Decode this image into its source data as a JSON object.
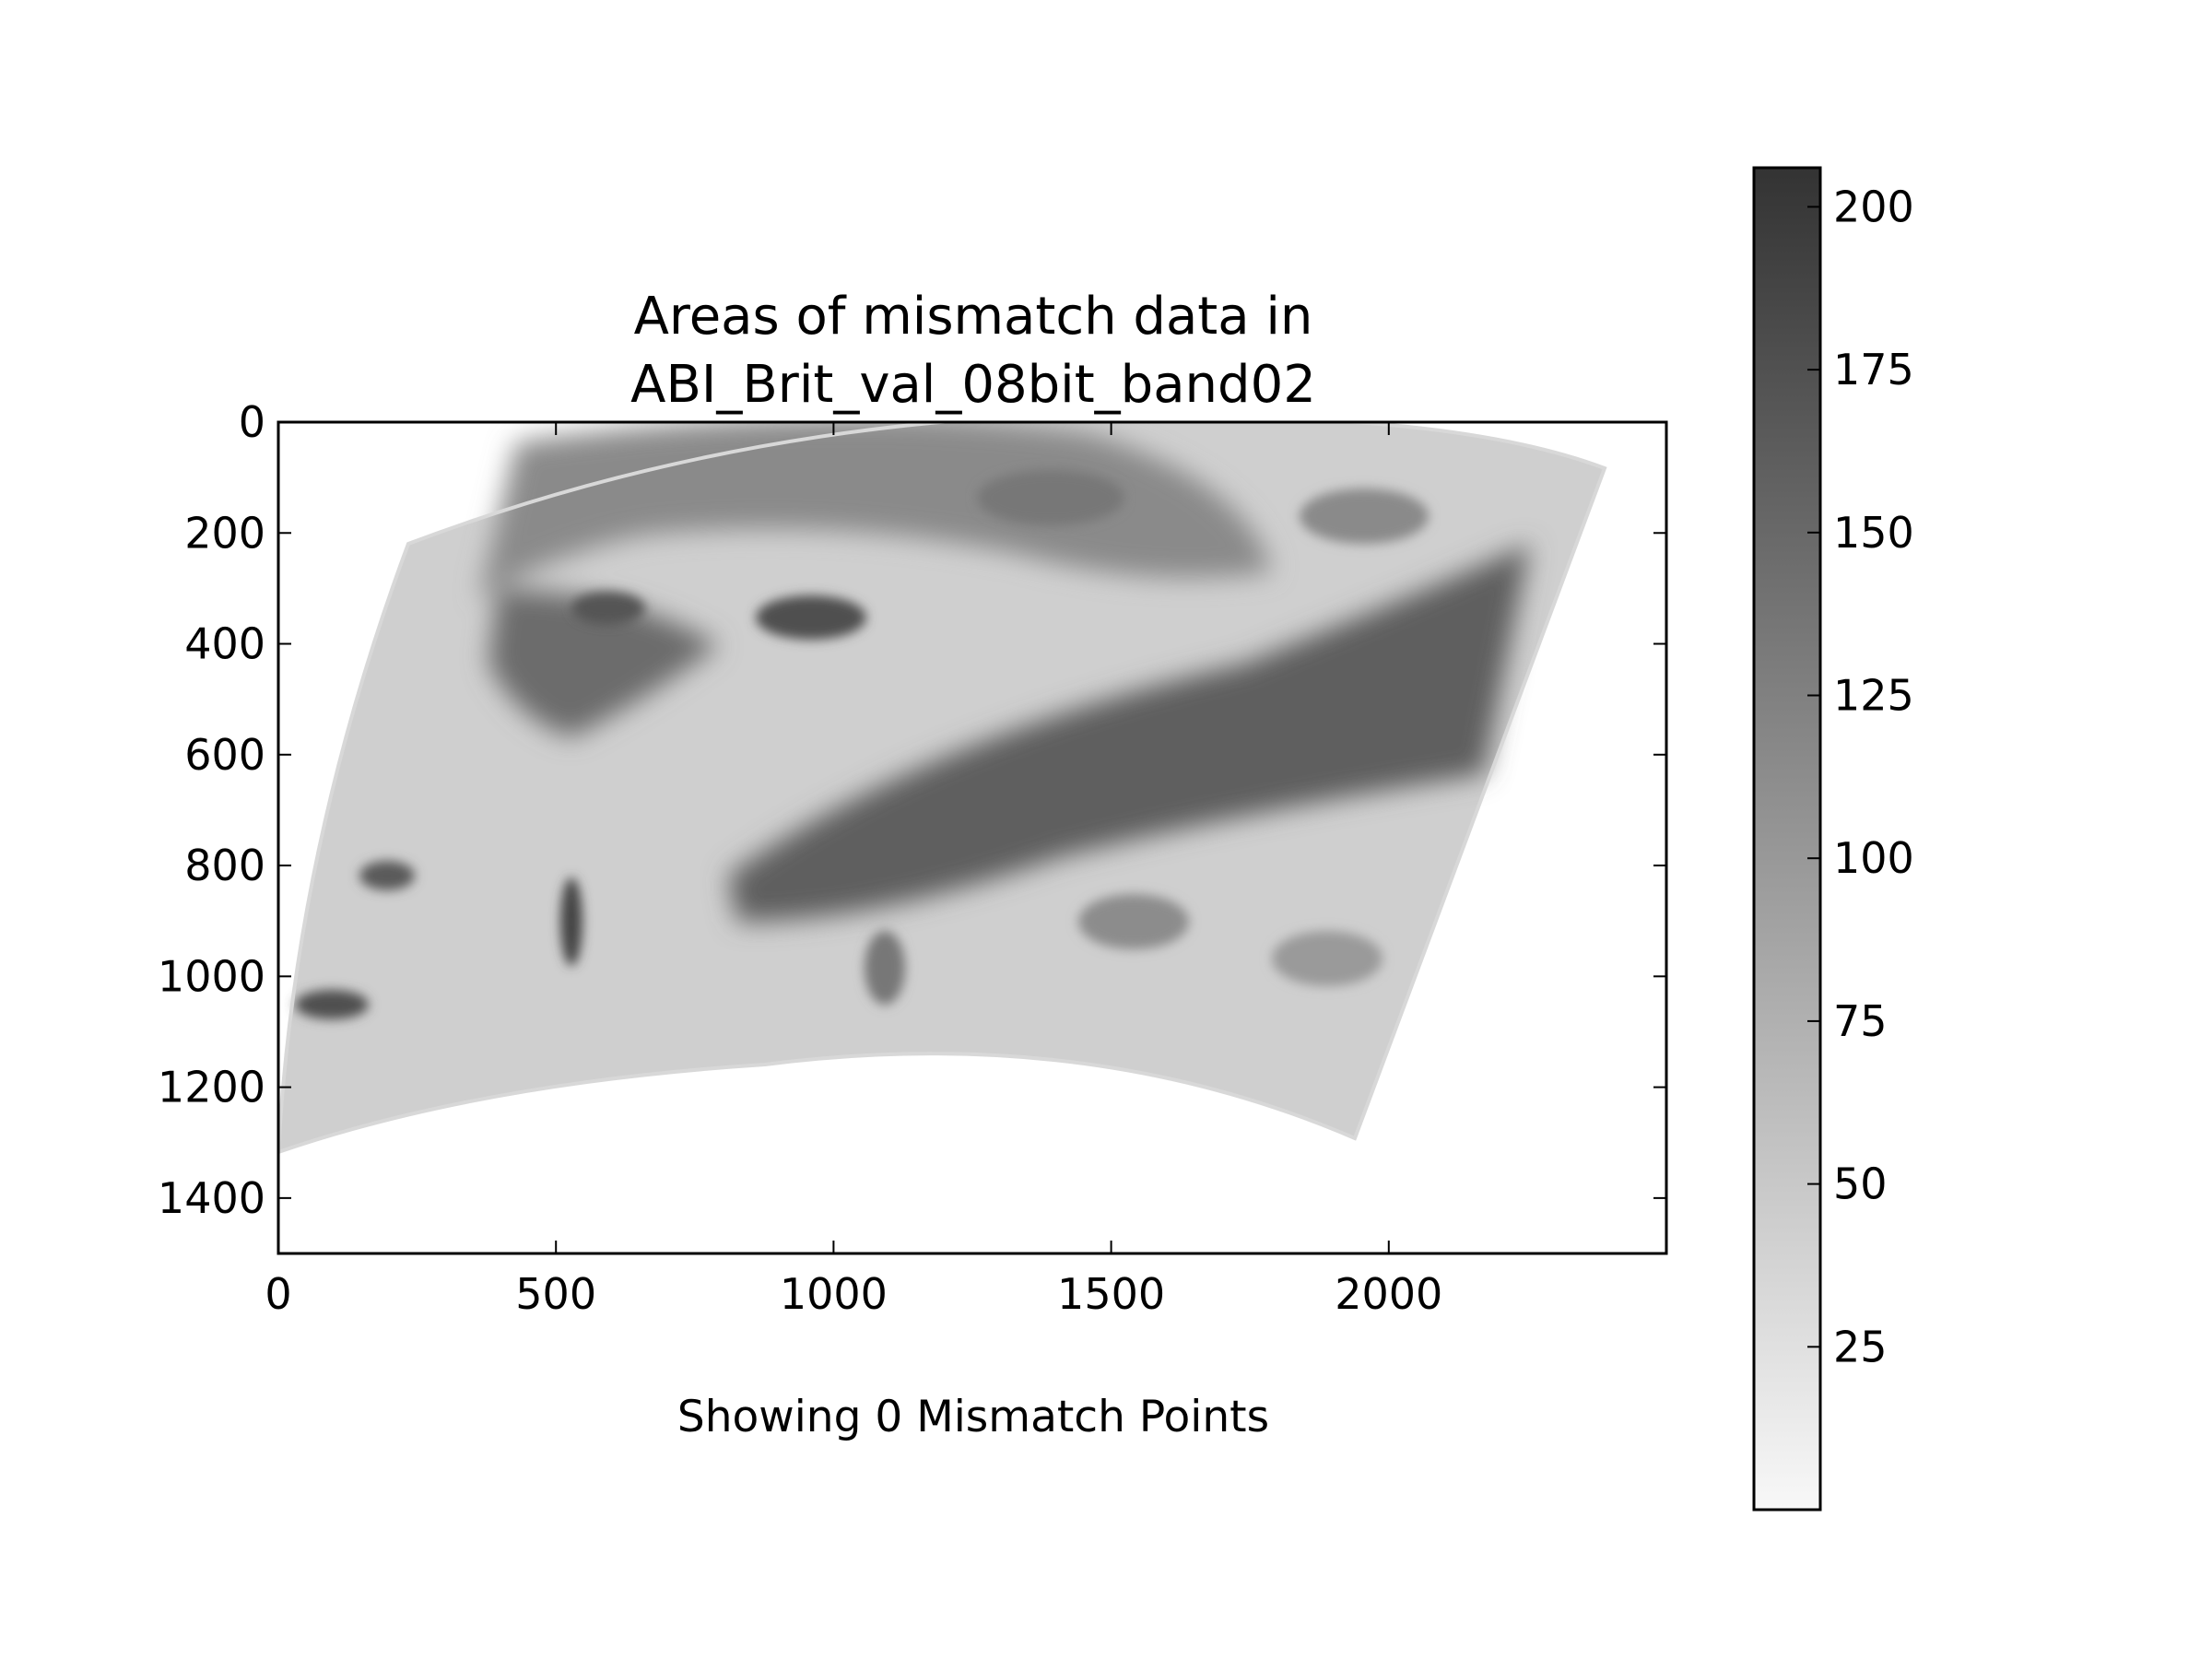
{
  "chart_data": {
    "type": "heatmap",
    "title_lines": [
      "Areas of mismatch data in",
      "ABI_Brit_val_08bit_band02"
    ],
    "xlabel": "",
    "ylabel": "",
    "caption": "Showing 0 Mismatch Points",
    "xlim": [
      0,
      2500
    ],
    "ylim": [
      1500,
      0
    ],
    "y_axis_inverted": true,
    "x_ticks": [
      0,
      500,
      1000,
      1500,
      2000
    ],
    "x_tick_labels": [
      "0",
      "500",
      "1000",
      "1500",
      "2000"
    ],
    "y_ticks": [
      0,
      200,
      400,
      600,
      800,
      1000,
      1200,
      1400
    ],
    "y_tick_labels": [
      "0",
      "200",
      "400",
      "600",
      "800",
      "1000",
      "1200",
      "1400"
    ],
    "colormap": "grayscale (white = low, dark gray = high)",
    "colorbar": {
      "range": [
        0,
        206
      ],
      "ticks": [
        25,
        50,
        75,
        100,
        125,
        150,
        175,
        200
      ],
      "tick_labels": [
        "25",
        "50",
        "75",
        "100",
        "125",
        "150",
        "175",
        "200"
      ],
      "low_color": "#f8f8f8",
      "high_color": "#333333"
    },
    "image_footprint": {
      "description": "curved satellite scan footprint (data pixels)",
      "corner_pixels": {
        "top_left": [
          310,
          205
        ],
        "top_right": [
          2395,
          105
        ],
        "bottom_right": [
          1930,
          1290
        ],
        "bottom_left": [
          0,
          1310
        ]
      },
      "typical_value": 55,
      "cloud_value": 140
    },
    "mismatch_points": []
  }
}
